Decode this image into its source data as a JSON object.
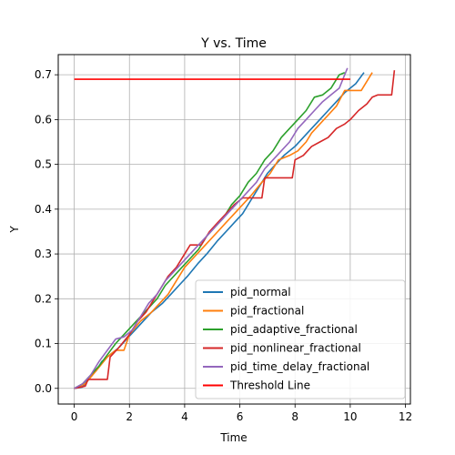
{
  "chart_data": {
    "type": "line",
    "title": "Y vs. Time",
    "xlabel": "Time",
    "ylabel": "Y",
    "xlim": [
      -0.58,
      12.18
    ],
    "ylim": [
      -0.035,
      0.745
    ],
    "xticks": [
      0,
      2,
      4,
      6,
      8,
      10,
      12
    ],
    "yticks": [
      0.0,
      0.1,
      0.2,
      0.3,
      0.4,
      0.5,
      0.6,
      0.7
    ],
    "grid": true,
    "legend_position": "lower right",
    "series": [
      {
        "name": "pid_normal",
        "color": "#1f77b4",
        "points": [
          [
            0,
            0
          ],
          [
            0.3,
            0.003
          ],
          [
            0.5,
            0.02
          ],
          [
            0.8,
            0.04
          ],
          [
            1.0,
            0.06
          ],
          [
            1.3,
            0.075
          ],
          [
            1.6,
            0.09
          ],
          [
            1.9,
            0.11
          ],
          [
            2.2,
            0.13
          ],
          [
            2.5,
            0.15
          ],
          [
            2.8,
            0.17
          ],
          [
            3.2,
            0.19
          ],
          [
            3.5,
            0.21
          ],
          [
            3.8,
            0.23
          ],
          [
            4.1,
            0.25
          ],
          [
            4.5,
            0.28
          ],
          [
            4.8,
            0.3
          ],
          [
            5.2,
            0.33
          ],
          [
            5.5,
            0.35
          ],
          [
            5.8,
            0.37
          ],
          [
            6.1,
            0.39
          ],
          [
            6.4,
            0.42
          ],
          [
            6.7,
            0.45
          ],
          [
            7.0,
            0.48
          ],
          [
            7.3,
            0.5
          ],
          [
            7.6,
            0.52
          ],
          [
            8.0,
            0.54
          ],
          [
            8.3,
            0.56
          ],
          [
            8.6,
            0.58
          ],
          [
            8.9,
            0.6
          ],
          [
            9.2,
            0.62
          ],
          [
            9.5,
            0.64
          ],
          [
            9.8,
            0.66
          ],
          [
            10.2,
            0.68
          ],
          [
            10.5,
            0.705
          ]
        ]
      },
      {
        "name": "pid_fractional",
        "color": "#ff7f0e",
        "points": [
          [
            0,
            0
          ],
          [
            0.4,
            0.01
          ],
          [
            0.8,
            0.04
          ],
          [
            1.2,
            0.07
          ],
          [
            1.5,
            0.085
          ],
          [
            1.8,
            0.085
          ],
          [
            2.0,
            0.12
          ],
          [
            2.4,
            0.15
          ],
          [
            2.8,
            0.17
          ],
          [
            3.1,
            0.19
          ],
          [
            3.4,
            0.21
          ],
          [
            3.7,
            0.24
          ],
          [
            4.0,
            0.27
          ],
          [
            4.3,
            0.29
          ],
          [
            4.6,
            0.31
          ],
          [
            4.9,
            0.33
          ],
          [
            5.2,
            0.35
          ],
          [
            5.5,
            0.37
          ],
          [
            5.8,
            0.39
          ],
          [
            6.1,
            0.41
          ],
          [
            6.4,
            0.43
          ],
          [
            6.8,
            0.46
          ],
          [
            7.1,
            0.48
          ],
          [
            7.4,
            0.51
          ],
          [
            7.8,
            0.52
          ],
          [
            8.1,
            0.53
          ],
          [
            8.4,
            0.55
          ],
          [
            8.6,
            0.57
          ],
          [
            8.9,
            0.59
          ],
          [
            9.2,
            0.61
          ],
          [
            9.5,
            0.63
          ],
          [
            9.8,
            0.665
          ],
          [
            10.4,
            0.665
          ],
          [
            10.8,
            0.705
          ]
        ]
      },
      {
        "name": "pid_adaptive_fractional",
        "color": "#2ca02c",
        "points": [
          [
            0,
            0
          ],
          [
            0.3,
            0.01
          ],
          [
            0.6,
            0.03
          ],
          [
            0.9,
            0.05
          ],
          [
            1.2,
            0.075
          ],
          [
            1.5,
            0.1
          ],
          [
            1.8,
            0.12
          ],
          [
            2.1,
            0.14
          ],
          [
            2.4,
            0.16
          ],
          [
            2.7,
            0.18
          ],
          [
            3.0,
            0.2
          ],
          [
            3.3,
            0.23
          ],
          [
            3.6,
            0.25
          ],
          [
            3.9,
            0.27
          ],
          [
            4.2,
            0.29
          ],
          [
            4.5,
            0.31
          ],
          [
            4.8,
            0.34
          ],
          [
            5.1,
            0.36
          ],
          [
            5.4,
            0.38
          ],
          [
            5.7,
            0.41
          ],
          [
            6.0,
            0.43
          ],
          [
            6.3,
            0.46
          ],
          [
            6.6,
            0.48
          ],
          [
            6.9,
            0.51
          ],
          [
            7.2,
            0.53
          ],
          [
            7.5,
            0.56
          ],
          [
            7.8,
            0.58
          ],
          [
            8.1,
            0.6
          ],
          [
            8.4,
            0.62
          ],
          [
            8.7,
            0.65
          ],
          [
            9.0,
            0.655
          ],
          [
            9.3,
            0.67
          ],
          [
            9.6,
            0.7
          ],
          [
            9.8,
            0.705
          ]
        ]
      },
      {
        "name": "pid_nonlinear_fractional",
        "color": "#d62728",
        "points": [
          [
            0,
            0
          ],
          [
            0.4,
            0.005
          ],
          [
            0.5,
            0.02
          ],
          [
            1.2,
            0.02
          ],
          [
            1.3,
            0.07
          ],
          [
            1.6,
            0.09
          ],
          [
            2.0,
            0.12
          ],
          [
            2.3,
            0.15
          ],
          [
            2.6,
            0.17
          ],
          [
            2.9,
            0.2
          ],
          [
            3.1,
            0.22
          ],
          [
            3.4,
            0.25
          ],
          [
            3.7,
            0.27
          ],
          [
            4.0,
            0.3
          ],
          [
            4.2,
            0.32
          ],
          [
            4.6,
            0.32
          ],
          [
            4.9,
            0.35
          ],
          [
            5.2,
            0.37
          ],
          [
            5.5,
            0.39
          ],
          [
            5.8,
            0.41
          ],
          [
            6.1,
            0.425
          ],
          [
            6.8,
            0.425
          ],
          [
            6.9,
            0.47
          ],
          [
            7.9,
            0.47
          ],
          [
            8.0,
            0.51
          ],
          [
            8.3,
            0.52
          ],
          [
            8.6,
            0.54
          ],
          [
            8.9,
            0.55
          ],
          [
            9.2,
            0.56
          ],
          [
            9.5,
            0.58
          ],
          [
            9.8,
            0.59
          ],
          [
            10.0,
            0.6
          ],
          [
            10.3,
            0.62
          ],
          [
            10.6,
            0.635
          ],
          [
            10.8,
            0.65
          ],
          [
            11.0,
            0.655
          ],
          [
            11.5,
            0.655
          ],
          [
            11.6,
            0.71
          ]
        ]
      },
      {
        "name": "pid_time_delay_fractional",
        "color": "#9467bd",
        "points": [
          [
            0,
            0
          ],
          [
            0.3,
            0.01
          ],
          [
            0.6,
            0.03
          ],
          [
            0.9,
            0.06
          ],
          [
            1.2,
            0.085
          ],
          [
            1.5,
            0.11
          ],
          [
            1.8,
            0.115
          ],
          [
            2.1,
            0.13
          ],
          [
            2.4,
            0.16
          ],
          [
            2.7,
            0.19
          ],
          [
            3.0,
            0.21
          ],
          [
            3.3,
            0.24
          ],
          [
            3.6,
            0.26
          ],
          [
            3.9,
            0.28
          ],
          [
            4.2,
            0.3
          ],
          [
            4.5,
            0.32
          ],
          [
            4.8,
            0.34
          ],
          [
            5.1,
            0.36
          ],
          [
            5.4,
            0.38
          ],
          [
            5.7,
            0.4
          ],
          [
            6.0,
            0.42
          ],
          [
            6.3,
            0.44
          ],
          [
            6.6,
            0.46
          ],
          [
            6.9,
            0.49
          ],
          [
            7.2,
            0.51
          ],
          [
            7.5,
            0.53
          ],
          [
            7.8,
            0.55
          ],
          [
            8.1,
            0.58
          ],
          [
            8.4,
            0.6
          ],
          [
            8.7,
            0.62
          ],
          [
            9.0,
            0.64
          ],
          [
            9.3,
            0.655
          ],
          [
            9.6,
            0.67
          ],
          [
            9.9,
            0.715
          ]
        ]
      },
      {
        "name": "Threshold Line",
        "color": "#ff0000",
        "points": [
          [
            0,
            0.69
          ],
          [
            10,
            0.69
          ]
        ]
      }
    ]
  }
}
